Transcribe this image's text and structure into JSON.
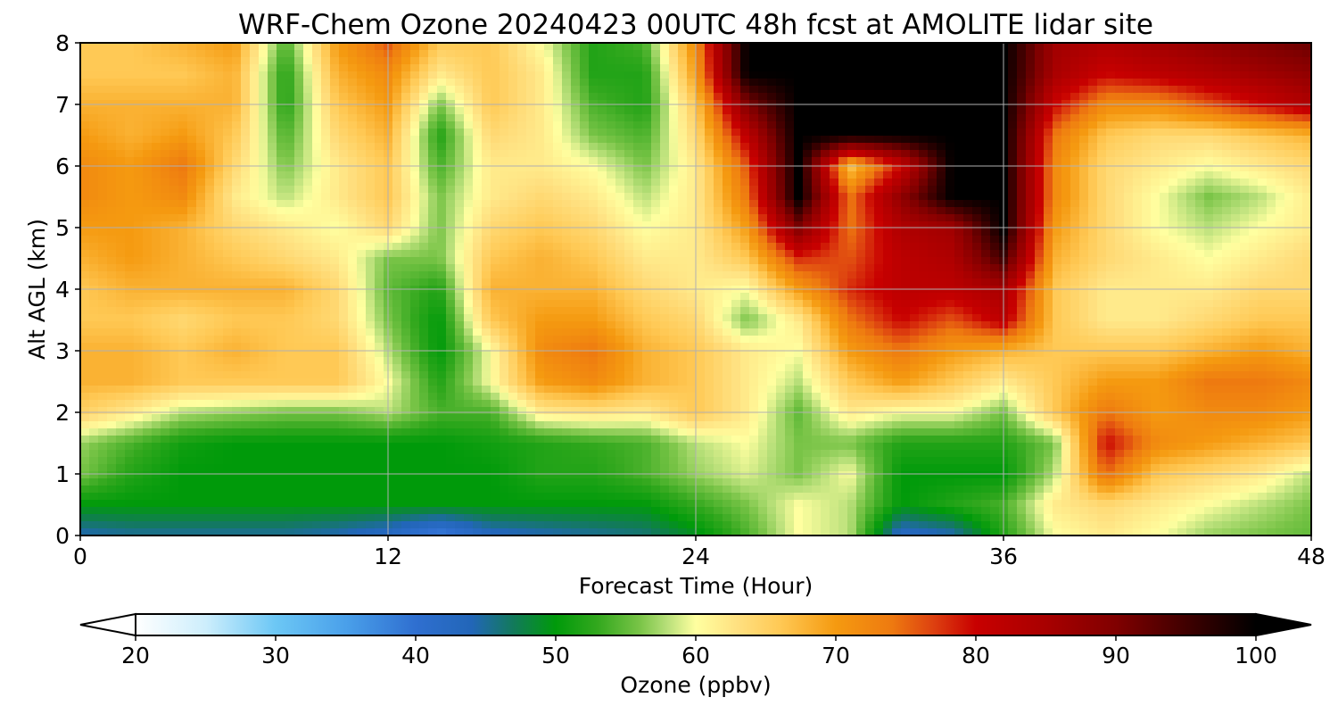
{
  "chart_data": {
    "type": "heatmap",
    "title": "WRF-Chem Ozone  20240423 00UTC 48h fcst at AMOLITE lidar site",
    "xlabel": "Forecast Time (Hour)",
    "ylabel": "Alt AGL (km)",
    "xlim": [
      0,
      48
    ],
    "ylim": [
      0,
      8
    ],
    "x_ticks": [
      0,
      12,
      24,
      36,
      48
    ],
    "y_ticks": [
      0,
      1,
      2,
      3,
      4,
      5,
      6,
      7,
      8
    ],
    "grid": true,
    "colorbar": {
      "label": "Ozone  (ppbv)",
      "range": [
        20,
        100
      ],
      "ticks": [
        20,
        30,
        40,
        50,
        60,
        70,
        80,
        90,
        100
      ],
      "extend": "both",
      "orientation": "horizontal",
      "stops": [
        {
          "value": 20,
          "color": "#ffffff"
        },
        {
          "value": 25,
          "color": "#cdeefc"
        },
        {
          "value": 30,
          "color": "#6cc7f5"
        },
        {
          "value": 35,
          "color": "#4aa0ea"
        },
        {
          "value": 40,
          "color": "#2f6fd0"
        },
        {
          "value": 44,
          "color": "#2266b8"
        },
        {
          "value": 47,
          "color": "#127a5a"
        },
        {
          "value": 50,
          "color": "#009a0a"
        },
        {
          "value": 53,
          "color": "#33a81e"
        },
        {
          "value": 56,
          "color": "#79c447"
        },
        {
          "value": 58,
          "color": "#b9e07a"
        },
        {
          "value": 60,
          "color": "#ffffa0"
        },
        {
          "value": 63,
          "color": "#ffe080"
        },
        {
          "value": 66,
          "color": "#ffc955"
        },
        {
          "value": 70,
          "color": "#f59a10"
        },
        {
          "value": 74,
          "color": "#ee7a10"
        },
        {
          "value": 77,
          "color": "#dd4010"
        },
        {
          "value": 80,
          "color": "#c80000"
        },
        {
          "value": 85,
          "color": "#a80000"
        },
        {
          "value": 90,
          "color": "#800000"
        },
        {
          "value": 95,
          "color": "#400000"
        },
        {
          "value": 100,
          "color": "#000000"
        }
      ]
    },
    "x": [
      0,
      2,
      4,
      6,
      8,
      10,
      12,
      14,
      16,
      18,
      20,
      22,
      24,
      26,
      28,
      30,
      32,
      34,
      36,
      38,
      40,
      42,
      44,
      46,
      48
    ],
    "y": [
      0,
      0.5,
      1,
      1.5,
      2,
      2.5,
      3,
      3.5,
      4,
      4.5,
      5,
      5.5,
      6,
      6.5,
      7,
      7.5,
      8
    ],
    "z": [
      [
        44,
        45,
        45,
        45,
        45,
        44,
        42,
        38,
        43,
        44,
        45,
        46,
        49,
        54,
        60,
        58,
        42,
        44,
        52,
        60,
        62,
        60,
        57,
        56,
        55
      ],
      [
        50,
        50,
        50,
        50,
        50,
        50,
        50,
        50,
        50,
        50,
        50,
        50,
        53,
        56,
        60,
        58,
        50,
        52,
        54,
        62,
        64,
        62,
        60,
        58,
        56
      ],
      [
        56,
        52,
        50,
        50,
        50,
        50,
        50,
        50,
        50,
        52,
        52,
        54,
        57,
        59,
        56,
        60,
        50,
        50,
        50,
        58,
        75,
        66,
        64,
        62,
        58
      ],
      [
        57,
        54,
        51,
        50,
        50,
        50,
        50,
        50,
        51,
        52,
        53,
        54,
        58,
        60,
        56,
        56,
        52,
        52,
        52,
        56,
        80,
        72,
        70,
        68,
        66
      ],
      [
        65,
        62,
        58,
        57,
        56,
        56,
        58,
        54,
        54,
        62,
        63,
        62,
        66,
        62,
        55,
        62,
        60,
        60,
        56,
        66,
        74,
        70,
        72,
        72,
        70
      ],
      [
        68,
        68,
        66,
        66,
        66,
        66,
        60,
        52,
        60,
        70,
        72,
        68,
        66,
        62,
        58,
        66,
        70,
        66,
        62,
        66,
        70,
        70,
        74,
        74,
        72
      ],
      [
        68,
        68,
        66,
        68,
        66,
        66,
        58,
        50,
        60,
        72,
        74,
        68,
        66,
        62,
        60,
        70,
        74,
        70,
        68,
        66,
        66,
        66,
        68,
        70,
        68
      ],
      [
        66,
        66,
        64,
        66,
        66,
        64,
        56,
        50,
        66,
        70,
        70,
        66,
        64,
        56,
        62,
        74,
        80,
        76,
        82,
        66,
        62,
        62,
        64,
        66,
        66
      ],
      [
        66,
        68,
        68,
        68,
        68,
        64,
        55,
        52,
        68,
        68,
        68,
        64,
        62,
        60,
        70,
        78,
        82,
        82,
        85,
        66,
        62,
        62,
        62,
        64,
        64
      ],
      [
        68,
        70,
        68,
        66,
        64,
        62,
        56,
        56,
        66,
        68,
        66,
        62,
        62,
        66,
        78,
        76,
        82,
        84,
        95,
        68,
        64,
        62,
        60,
        62,
        64
      ],
      [
        70,
        70,
        68,
        64,
        62,
        60,
        64,
        56,
        64,
        66,
        64,
        60,
        62,
        70,
        90,
        74,
        84,
        86,
        100,
        70,
        64,
        60,
        58,
        60,
        62
      ],
      [
        72,
        70,
        72,
        62,
        58,
        62,
        66,
        56,
        62,
        64,
        62,
        58,
        62,
        74,
        100,
        74,
        88,
        100,
        100,
        72,
        64,
        60,
        56,
        58,
        62
      ],
      [
        72,
        70,
        74,
        64,
        56,
        62,
        66,
        54,
        62,
        62,
        60,
        56,
        62,
        76,
        100,
        66,
        80,
        100,
        100,
        72,
        64,
        62,
        60,
        62,
        64
      ],
      [
        70,
        68,
        70,
        66,
        54,
        64,
        68,
        52,
        64,
        62,
        56,
        54,
        64,
        82,
        100,
        100,
        100,
        100,
        100,
        74,
        66,
        64,
        64,
        66,
        68
      ],
      [
        68,
        68,
        68,
        68,
        52,
        66,
        70,
        56,
        66,
        62,
        54,
        52,
        66,
        90,
        100,
        100,
        100,
        100,
        100,
        80,
        72,
        72,
        76,
        80,
        84
      ],
      [
        66,
        66,
        66,
        68,
        52,
        68,
        72,
        62,
        66,
        62,
        52,
        52,
        70,
        100,
        100,
        100,
        100,
        100,
        100,
        85,
        80,
        82,
        84,
        86,
        88
      ],
      [
        66,
        66,
        68,
        70,
        54,
        70,
        76,
        66,
        66,
        60,
        52,
        54,
        72,
        100,
        100,
        100,
        100,
        100,
        100,
        86,
        84,
        86,
        88,
        90,
        92
      ]
    ]
  }
}
